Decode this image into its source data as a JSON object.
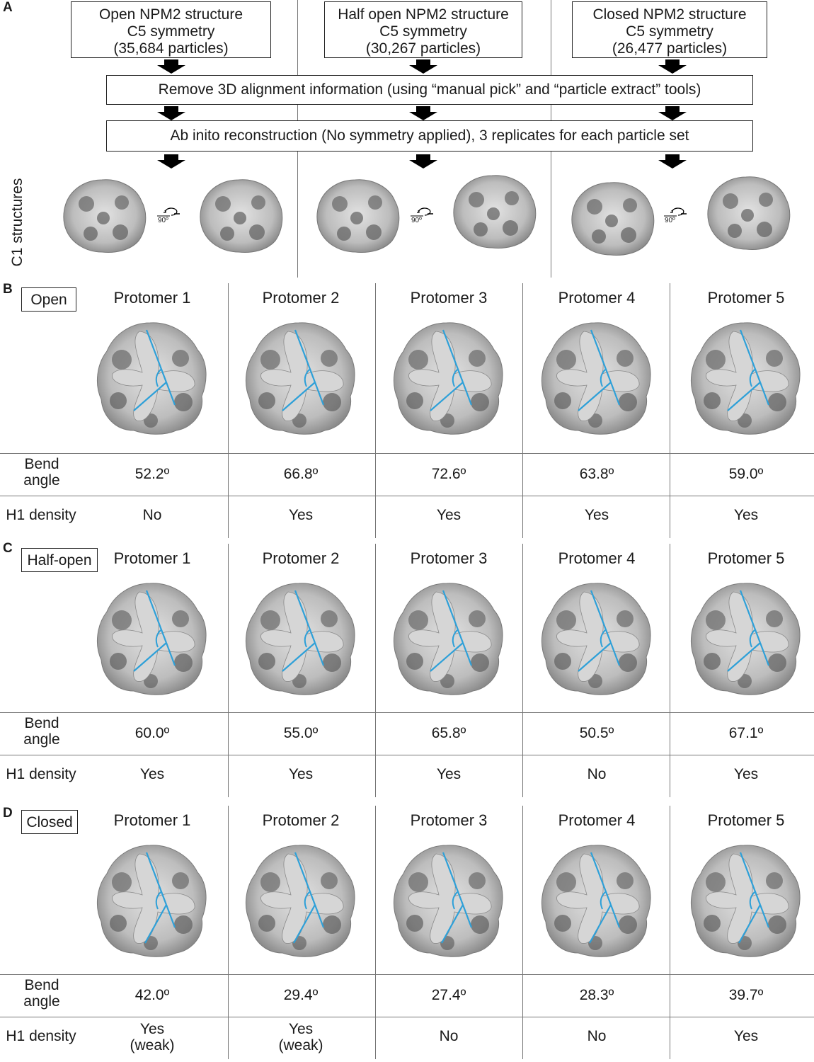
{
  "panels": {
    "a": {
      "label": "A",
      "boxes": [
        {
          "line1": "Open NPM2 structure",
          "line2": "C5 symmetry",
          "line3": "(35,684 particles)"
        },
        {
          "line1": "Half open NPM2 structure",
          "line2": "C5 symmetry",
          "line3": "(30,267 particles)"
        },
        {
          "line1": "Closed NPM2 structure",
          "line2": "C5 symmetry",
          "line3": "(26,477 particles)"
        }
      ],
      "step1": "Remove 3D alignment information (using “manual pick” and “particle extract” tools)",
      "step2": "Ab inito reconstruction (No symmetry applied), 3 replicates for each particle set",
      "side_label": "C1 structures",
      "rotation_label": "90º"
    },
    "b": {
      "label": "B",
      "condition": "Open",
      "protomers": [
        "Protomer 1",
        "Protomer 2",
        "Protomer 3",
        "Protomer 4",
        "Protomer 5"
      ],
      "bend_label": "Bend angle",
      "h1_label": "H1 density",
      "bend_angles": [
        "52.2º",
        "66.8º",
        "72.6º",
        "63.8º",
        "59.0º"
      ],
      "h1": [
        "No",
        "Yes",
        "Yes",
        "Yes",
        "Yes"
      ]
    },
    "c": {
      "label": "C",
      "condition": "Half-open",
      "protomers": [
        "Protomer 1",
        "Protomer 2",
        "Protomer 3",
        "Protomer 4",
        "Protomer 5"
      ],
      "bend_label": "Bend angle",
      "h1_label": "H1 density",
      "bend_angles": [
        "60.0º",
        "55.0º",
        "65.8º",
        "50.5º",
        "67.1º"
      ],
      "h1": [
        "Yes",
        "Yes",
        "Yes",
        "No",
        "Yes"
      ]
    },
    "d": {
      "label": "D",
      "condition": "Closed",
      "protomers": [
        "Protomer 1",
        "Protomer 2",
        "Protomer 3",
        "Protomer 4",
        "Protomer 5"
      ],
      "bend_label": "Bend angle",
      "h1_label": "H1 density",
      "bend_angles": [
        "42.0º",
        "29.4º",
        "27.4º",
        "28.3º",
        "39.7º"
      ],
      "h1": [
        "Yes\n(weak)",
        "Yes\n(weak)",
        "No",
        "No",
        "Yes"
      ]
    }
  },
  "colors": {
    "line": "#2ea0d8",
    "density_fill": "#b4b4b4",
    "density_dark": "#555555"
  }
}
